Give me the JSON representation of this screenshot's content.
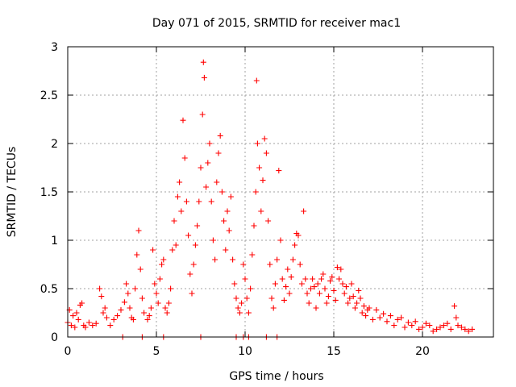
{
  "chart_data": {
    "type": "scatter",
    "title": "Day 071 of 2015, SRMTID for receiver mac1",
    "xlabel": "GPS time / hours",
    "ylabel": "SRMTID / TECUs",
    "xlim": [
      0,
      24
    ],
    "ylim": [
      0,
      3
    ],
    "xticks": [
      0,
      5,
      10,
      15,
      20
    ],
    "xtick_labels": [
      "0",
      "5",
      "10",
      "15",
      "20"
    ],
    "yticks": [
      0,
      0.5,
      1,
      1.5,
      2,
      2.5,
      3
    ],
    "ytick_labels": [
      "0",
      "0.5",
      "1",
      "1.5",
      "2",
      "2.5",
      "3"
    ],
    "grid": true,
    "marker": "+",
    "series": [
      {
        "name": "SRMTID",
        "color": "#ff0000",
        "points": [
          [
            0.0,
            0.15
          ],
          [
            0.1,
            0.28
          ],
          [
            0.2,
            0.12
          ],
          [
            0.3,
            0.22
          ],
          [
            0.4,
            0.1
          ],
          [
            0.5,
            0.25
          ],
          [
            0.6,
            0.18
          ],
          [
            0.7,
            0.33
          ],
          [
            0.8,
            0.35
          ],
          [
            0.9,
            0.12
          ],
          [
            1.0,
            0.1
          ],
          [
            1.2,
            0.15
          ],
          [
            1.4,
            0.12
          ],
          [
            1.6,
            0.14
          ],
          [
            1.8,
            0.5
          ],
          [
            1.9,
            0.42
          ],
          [
            2.0,
            0.25
          ],
          [
            2.1,
            0.3
          ],
          [
            2.2,
            0.2
          ],
          [
            2.4,
            0.12
          ],
          [
            2.6,
            0.18
          ],
          [
            2.8,
            0.22
          ],
          [
            3.0,
            0.28
          ],
          [
            3.2,
            0.36
          ],
          [
            3.3,
            0.55
          ],
          [
            3.4,
            0.45
          ],
          [
            3.5,
            0.3
          ],
          [
            3.6,
            0.2
          ],
          [
            3.7,
            0.18
          ],
          [
            3.8,
            0.5
          ],
          [
            3.9,
            0.85
          ],
          [
            4.0,
            1.1
          ],
          [
            4.1,
            0.7
          ],
          [
            4.2,
            0.4
          ],
          [
            4.3,
            0.25
          ],
          [
            4.5,
            0.18
          ],
          [
            4.6,
            0.22
          ],
          [
            4.7,
            0.3
          ],
          [
            4.8,
            0.9
          ],
          [
            4.9,
            0.55
          ],
          [
            5.0,
            0.45
          ],
          [
            5.1,
            0.35
          ],
          [
            5.2,
            0.6
          ],
          [
            5.3,
            0.75
          ],
          [
            5.4,
            0.8
          ],
          [
            5.5,
            0.3
          ],
          [
            5.6,
            0.25
          ],
          [
            5.7,
            0.35
          ],
          [
            5.8,
            0.5
          ],
          [
            5.9,
            0.9
          ],
          [
            6.0,
            1.2
          ],
          [
            6.1,
            0.95
          ],
          [
            6.2,
            1.45
          ],
          [
            6.3,
            1.6
          ],
          [
            6.4,
            1.3
          ],
          [
            6.5,
            2.24
          ],
          [
            6.6,
            1.85
          ],
          [
            6.7,
            1.4
          ],
          [
            6.8,
            1.05
          ],
          [
            6.9,
            0.65
          ],
          [
            7.0,
            0.45
          ],
          [
            7.1,
            0.75
          ],
          [
            7.2,
            0.95
          ],
          [
            7.3,
            1.15
          ],
          [
            7.4,
            1.4
          ],
          [
            7.5,
            1.75
          ],
          [
            7.6,
            2.3
          ],
          [
            7.65,
            2.84
          ],
          [
            7.7,
            2.68
          ],
          [
            7.8,
            1.55
          ],
          [
            7.9,
            1.8
          ],
          [
            8.0,
            2.0
          ],
          [
            8.1,
            1.4
          ],
          [
            8.2,
            1.0
          ],
          [
            8.3,
            0.8
          ],
          [
            8.4,
            1.6
          ],
          [
            8.5,
            1.9
          ],
          [
            8.6,
            2.08
          ],
          [
            8.7,
            1.5
          ],
          [
            8.8,
            1.2
          ],
          [
            8.9,
            0.9
          ],
          [
            9.0,
            1.3
          ],
          [
            9.1,
            1.1
          ],
          [
            9.2,
            1.45
          ],
          [
            9.3,
            0.8
          ],
          [
            9.4,
            0.55
          ],
          [
            9.5,
            0.4
          ],
          [
            9.6,
            0.3
          ],
          [
            9.7,
            0.25
          ],
          [
            9.8,
            0.35
          ],
          [
            9.9,
            0.75
          ],
          [
            10.0,
            0.6
          ],
          [
            10.1,
            0.4
          ],
          [
            10.2,
            0.25
          ],
          [
            10.3,
            0.5
          ],
          [
            10.4,
            0.85
          ],
          [
            10.5,
            1.15
          ],
          [
            10.6,
            1.5
          ],
          [
            10.65,
            2.65
          ],
          [
            10.7,
            2.0
          ],
          [
            10.8,
            1.75
          ],
          [
            10.9,
            1.3
          ],
          [
            11.0,
            1.62
          ],
          [
            11.1,
            2.05
          ],
          [
            11.2,
            1.9
          ],
          [
            11.3,
            1.2
          ],
          [
            11.4,
            0.75
          ],
          [
            11.5,
            0.4
          ],
          [
            11.6,
            0.3
          ],
          [
            11.7,
            0.55
          ],
          [
            11.8,
            0.8
          ],
          [
            11.9,
            1.72
          ],
          [
            12.0,
            1.0
          ],
          [
            12.1,
            0.6
          ],
          [
            12.2,
            0.38
          ],
          [
            12.3,
            0.52
          ],
          [
            12.4,
            0.7
          ],
          [
            12.5,
            0.45
          ],
          [
            12.6,
            0.62
          ],
          [
            12.7,
            0.8
          ],
          [
            12.8,
            0.95
          ],
          [
            12.9,
            1.07
          ],
          [
            13.0,
            1.05
          ],
          [
            13.1,
            0.75
          ],
          [
            13.2,
            0.55
          ],
          [
            13.3,
            1.3
          ],
          [
            13.4,
            0.6
          ],
          [
            13.5,
            0.45
          ],
          [
            13.6,
            0.35
          ],
          [
            13.7,
            0.5
          ],
          [
            13.8,
            0.6
          ],
          [
            13.9,
            0.52
          ],
          [
            14.0,
            0.3
          ],
          [
            14.1,
            0.55
          ],
          [
            14.2,
            0.45
          ],
          [
            14.3,
            0.6
          ],
          [
            14.4,
            0.65
          ],
          [
            14.5,
            0.5
          ],
          [
            14.6,
            0.35
          ],
          [
            14.7,
            0.42
          ],
          [
            14.8,
            0.58
          ],
          [
            14.9,
            0.62
          ],
          [
            15.0,
            0.48
          ],
          [
            15.1,
            0.38
          ],
          [
            15.2,
            0.72
          ],
          [
            15.3,
            0.6
          ],
          [
            15.4,
            0.7
          ],
          [
            15.5,
            0.55
          ],
          [
            15.6,
            0.45
          ],
          [
            15.7,
            0.52
          ],
          [
            15.8,
            0.35
          ],
          [
            15.9,
            0.4
          ],
          [
            16.0,
            0.55
          ],
          [
            16.1,
            0.42
          ],
          [
            16.2,
            0.3
          ],
          [
            16.3,
            0.35
          ],
          [
            16.4,
            0.48
          ],
          [
            16.5,
            0.4
          ],
          [
            16.6,
            0.25
          ],
          [
            16.7,
            0.32
          ],
          [
            16.8,
            0.22
          ],
          [
            16.9,
            0.28
          ],
          [
            17.0,
            0.3
          ],
          [
            17.2,
            0.18
          ],
          [
            17.4,
            0.28
          ],
          [
            17.6,
            0.2
          ],
          [
            17.8,
            0.24
          ],
          [
            18.0,
            0.16
          ],
          [
            18.2,
            0.22
          ],
          [
            18.4,
            0.12
          ],
          [
            18.6,
            0.18
          ],
          [
            18.8,
            0.2
          ],
          [
            19.0,
            0.1
          ],
          [
            19.2,
            0.15
          ],
          [
            19.4,
            0.12
          ],
          [
            19.6,
            0.16
          ],
          [
            19.8,
            0.08
          ],
          [
            20.0,
            0.1
          ],
          [
            20.2,
            0.14
          ],
          [
            20.4,
            0.12
          ],
          [
            20.6,
            0.06
          ],
          [
            20.8,
            0.08
          ],
          [
            21.0,
            0.1
          ],
          [
            21.2,
            0.12
          ],
          [
            21.4,
            0.14
          ],
          [
            21.6,
            0.08
          ],
          [
            21.8,
            0.32
          ],
          [
            21.9,
            0.2
          ],
          [
            22.0,
            0.12
          ],
          [
            22.2,
            0.1
          ],
          [
            22.4,
            0.08
          ],
          [
            22.6,
            0.06
          ],
          [
            22.8,
            0.08
          ],
          [
            3.1,
            0.0
          ],
          [
            4.2,
            0.0
          ],
          [
            5.4,
            0.0
          ],
          [
            7.5,
            0.0
          ],
          [
            9.5,
            0.0
          ],
          [
            9.9,
            0.0
          ],
          [
            10.2,
            0.0
          ],
          [
            11.2,
            0.0
          ],
          [
            11.8,
            0.0
          ]
        ]
      }
    ]
  }
}
